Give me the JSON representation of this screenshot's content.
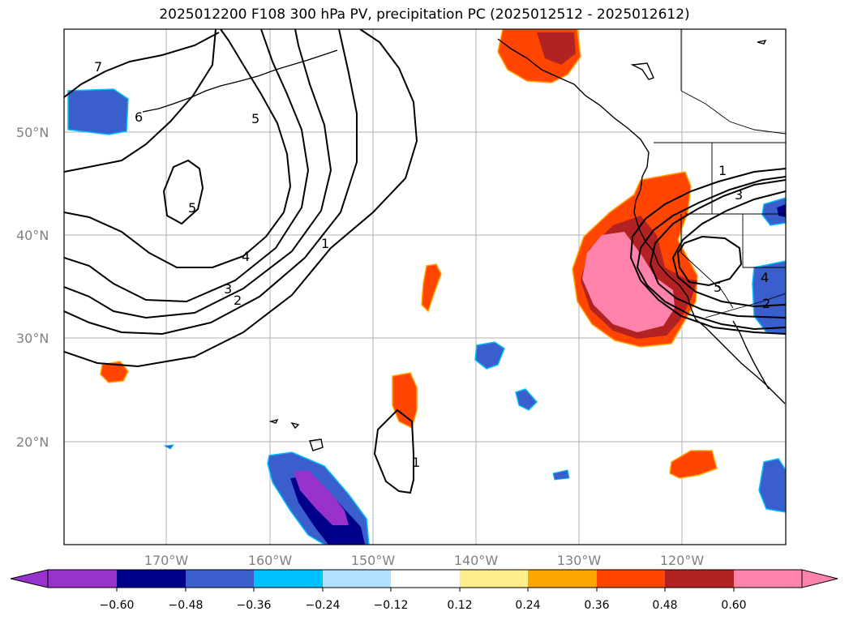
{
  "title": "2025012200 F108 300 hPa PV, precipitation PC (2025012512 - 2025012612)",
  "lat_labels": [
    "50°N",
    "40°N",
    "30°N",
    "20°N"
  ],
  "lon_labels": [
    "170°W",
    "160°W",
    "150°W",
    "140°W",
    "130°W",
    "120°W"
  ],
  "contour_labels": [
    "7",
    "6",
    "5",
    "5",
    "4",
    "3",
    "2",
    "1",
    "1",
    "3",
    "5",
    "4",
    "2",
    "1"
  ],
  "colorbar": {
    "ticks": [
      "−0.60",
      "−0.48",
      "−0.36",
      "−0.24",
      "−0.12",
      "0.12",
      "0.24",
      "0.36",
      "0.48",
      "0.60"
    ],
    "colors": [
      "#9932cc",
      "#00008b",
      "#3a5fcd",
      "#00bfff",
      "#b0e2ff",
      "#ffffff",
      "#ffec8b",
      "#ffa500",
      "#ff4500",
      "#b22222",
      "#ff82ab"
    ]
  }
}
